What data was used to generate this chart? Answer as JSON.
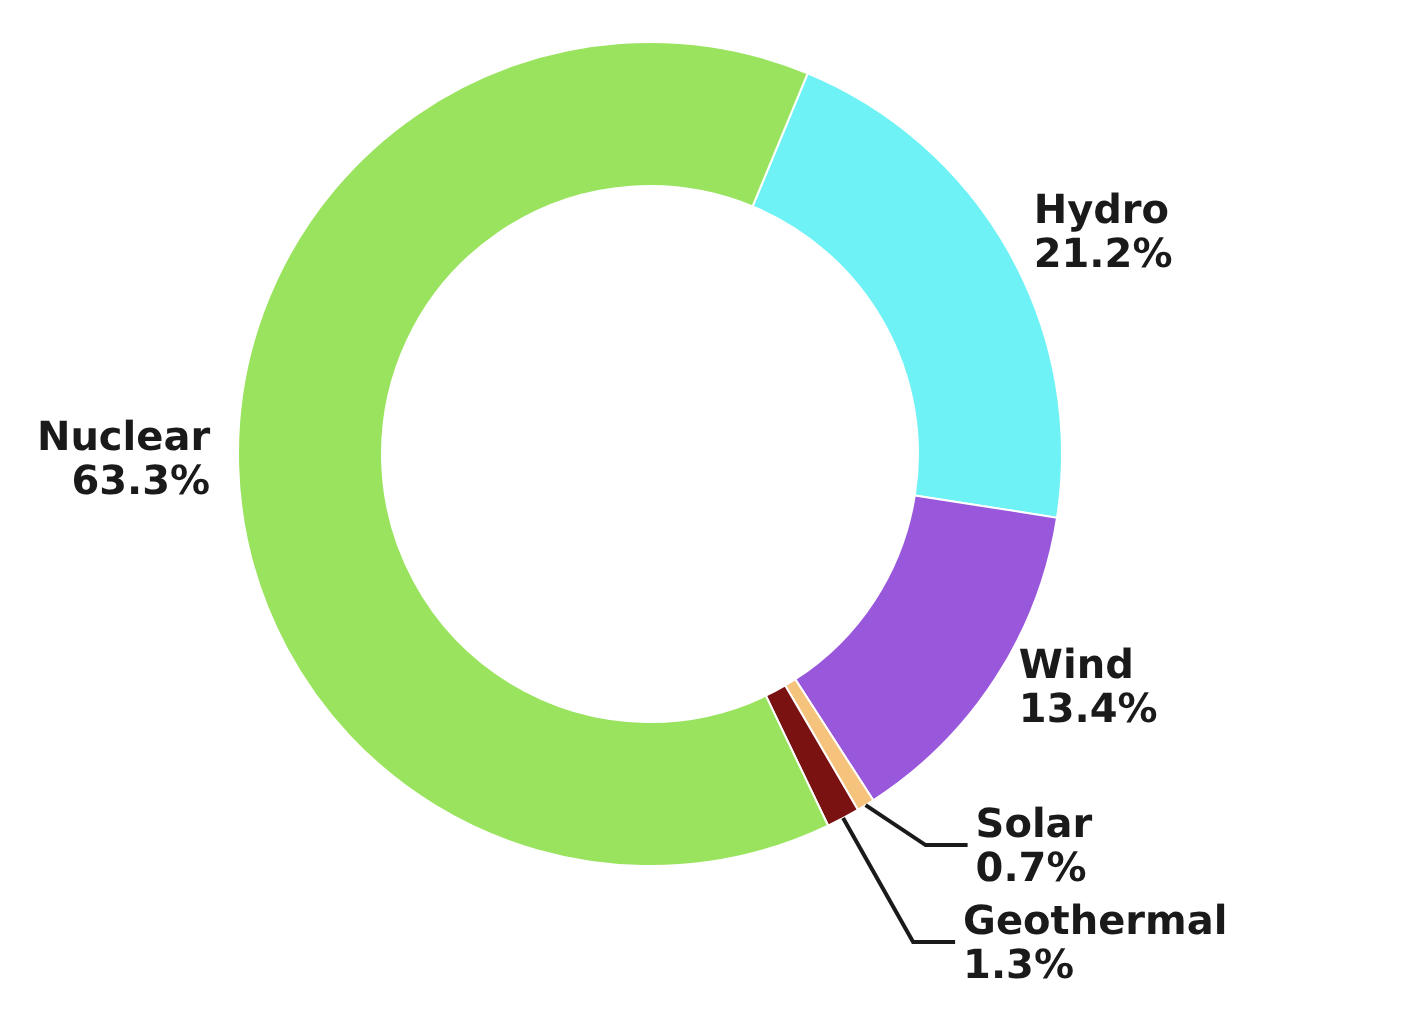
{
  "chart_data": {
    "type": "donut",
    "categories": [
      "Hydro",
      "Wind",
      "Solar",
      "Geothermal",
      "Nuclear"
    ],
    "values": [
      21.2,
      13.4,
      0.7,
      1.3,
      63.3
    ],
    "value_labels": [
      "21.2%",
      "13.4%",
      "0.7%",
      "1.3%",
      "63.3%"
    ],
    "colors": [
      "#6ff2f5",
      "#9957dc",
      "#f6c37c",
      "#7a1212",
      "#9ae35e"
    ],
    "legend": false
  }
}
